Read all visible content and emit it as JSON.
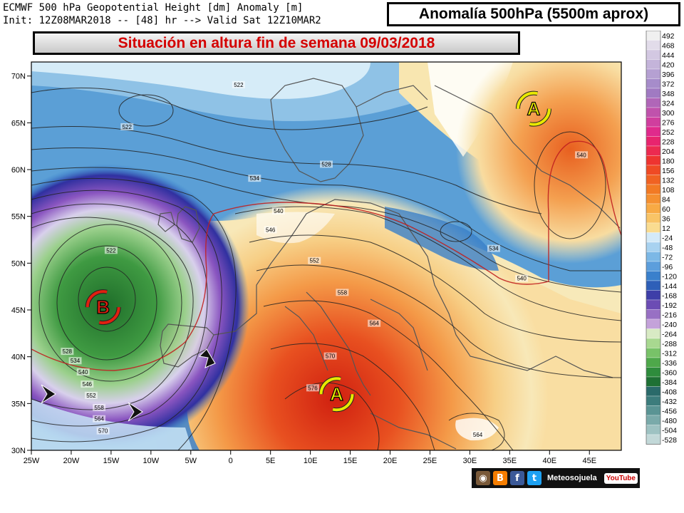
{
  "header": {
    "line1": "ECMWF 500 hPa Geopotential Height [dm] Anomaly [m]",
    "line2": "Init: 12Z08MAR2018 -- [48] hr --> Valid Sat 12Z10MAR2"
  },
  "title": "Anomalía 500hPa (5500m aprox)",
  "subtitle": "Situación en altura fin de semana 09/03/2018",
  "lat_labels": [
    "70N",
    "65N",
    "60N",
    "55N",
    "50N",
    "45N",
    "40N",
    "35N",
    "30N"
  ],
  "lat_values": [
    70,
    65,
    60,
    55,
    50,
    45,
    40,
    35,
    30
  ],
  "lon_labels": [
    "25W",
    "20W",
    "15W",
    "10W",
    "5W",
    "0",
    "5E",
    "10E",
    "15E",
    "20E",
    "25E",
    "30E",
    "35E",
    "40E",
    "45E"
  ],
  "lon_values": [
    -25,
    -20,
    -15,
    -10,
    -5,
    0,
    5,
    10,
    15,
    20,
    25,
    30,
    35,
    40,
    45
  ],
  "colorbar_labels": [
    "492",
    "468",
    "444",
    "420",
    "396",
    "372",
    "348",
    "324",
    "300",
    "276",
    "252",
    "228",
    "204",
    "180",
    "156",
    "132",
    "108",
    "84",
    "60",
    "36",
    "12",
    "-24",
    "-48",
    "-72",
    "-96",
    "-120",
    "-144",
    "-168",
    "-192",
    "-216",
    "-240",
    "-264",
    "-288",
    "-312",
    "-336",
    "-360",
    "-384",
    "-408",
    "-432",
    "-456",
    "-480",
    "-504",
    "-528"
  ],
  "contour_labels": [
    {
      "text": "522",
      "lon": 1,
      "lat": 69
    },
    {
      "text": "522",
      "lon": -13,
      "lat": 64.5
    },
    {
      "text": "528",
      "lon": 12,
      "lat": 60.5
    },
    {
      "text": "534",
      "lon": 3,
      "lat": 59
    },
    {
      "text": "540",
      "lon": 6,
      "lat": 55.5
    },
    {
      "text": "546",
      "lon": 5,
      "lat": 53.5
    },
    {
      "text": "552",
      "lon": 10.5,
      "lat": 50.2
    },
    {
      "text": "558",
      "lon": 14,
      "lat": 46.8
    },
    {
      "text": "564",
      "lon": 18,
      "lat": 43.5
    },
    {
      "text": "570",
      "lon": 12.5,
      "lat": 40
    },
    {
      "text": "576",
      "lon": 10.3,
      "lat": 36.6
    },
    {
      "text": "564",
      "lon": 31,
      "lat": 31.6
    },
    {
      "text": "534",
      "lon": 33,
      "lat": 51.5
    },
    {
      "text": "540",
      "lon": 36.5,
      "lat": 48.3
    },
    {
      "text": "540",
      "lon": 44,
      "lat": 61.5
    },
    {
      "text": "522",
      "lon": -15,
      "lat": 51.3
    },
    {
      "text": "528",
      "lon": -20.5,
      "lat": 40.5
    },
    {
      "text": "534",
      "lon": -19.5,
      "lat": 39.5
    },
    {
      "text": "540",
      "lon": -18.5,
      "lat": 38.3
    },
    {
      "text": "546",
      "lon": -18,
      "lat": 37
    },
    {
      "text": "552",
      "lon": -17.5,
      "lat": 35.8
    },
    {
      "text": "558",
      "lon": -16.5,
      "lat": 34.5
    },
    {
      "text": "564",
      "lon": -16.5,
      "lat": 33.3
    },
    {
      "text": "570",
      "lon": -16,
      "lat": 32
    }
  ],
  "pressure_systems": [
    {
      "letter": "A",
      "lon": 13.3,
      "lat": 36,
      "kind": "high"
    },
    {
      "letter": "A",
      "lon": 38,
      "lat": 66.5,
      "kind": "high"
    },
    {
      "letter": "B",
      "lon": -16,
      "lat": 45.3,
      "kind": "low"
    }
  ],
  "footer": {
    "brand": "Meteosojuela",
    "youtube": "YouTube",
    "icons": [
      "instagram-icon",
      "blogger-icon",
      "facebook-icon",
      "twitter-icon"
    ]
  },
  "colors": {
    "title_red": "#d40000",
    "high_arrows": "#e8e800",
    "low_arrows": "#e02010",
    "highs_fill": "#e04020",
    "lows_fill": "#2a8a30"
  }
}
